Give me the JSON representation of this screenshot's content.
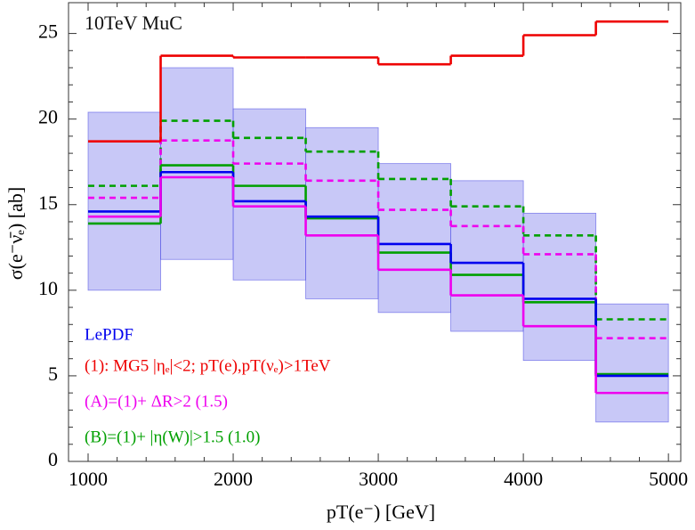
{
  "chart_data": {
    "type": "histogram",
    "title": "10TeV MuC",
    "x_label": "pT(e⁻) [GeV]",
    "y_label": "σ(e⁻ν̄ₑ) [ab]",
    "bins": [
      1000,
      1500,
      2000,
      2500,
      3000,
      3500,
      4000,
      4500,
      5000
    ],
    "xlim": [
      865,
      5085
    ],
    "ylim": [
      0,
      26.8
    ],
    "xticks": [
      1000,
      2000,
      3000,
      4000,
      5000
    ],
    "yticks": [
      0,
      5,
      10,
      15,
      20,
      25
    ],
    "series": [
      {
        "name": "LePDF",
        "color": "#0000ee",
        "values": [
          14.6,
          16.9,
          15.2,
          14.3,
          12.7,
          11.6,
          9.5,
          5.0
        ],
        "lower": [
          10.0,
          11.8,
          10.6,
          9.5,
          8.7,
          7.6,
          5.9,
          2.3
        ],
        "upper": [
          20.4,
          23.0,
          20.6,
          19.5,
          17.4,
          16.4,
          14.5,
          9.2
        ]
      },
      {
        "name": "(1): MG5 |ηₑ|<2; pT(e),pT(νₑ)>1TeV",
        "color": "#ee0000",
        "values": [
          18.7,
          23.7,
          23.6,
          23.6,
          23.2,
          23.7,
          24.9,
          25.7
        ]
      },
      {
        "name": "(A)=(1)+ ΔR>2 (1.5)",
        "color": "#ee00ee",
        "values": [
          14.3,
          16.6,
          14.9,
          13.2,
          11.2,
          9.7,
          7.9,
          4.0
        ]
      },
      {
        "name": "(B)=(1)+ |η(W)|>1.5 (1.0)",
        "color": "#00a000",
        "values": [
          13.9,
          17.3,
          16.1,
          14.2,
          12.2,
          10.9,
          9.3,
          5.1
        ]
      },
      {
        "color": "#00a000",
        "dashed": true,
        "values": [
          16.1,
          19.9,
          18.9,
          18.1,
          16.5,
          14.9,
          13.2,
          8.3
        ]
      },
      {
        "color": "#ee00ee",
        "dashed": true,
        "values": [
          15.4,
          18.75,
          17.4,
          16.4,
          14.7,
          13.75,
          12.1,
          7.2
        ]
      }
    ]
  }
}
